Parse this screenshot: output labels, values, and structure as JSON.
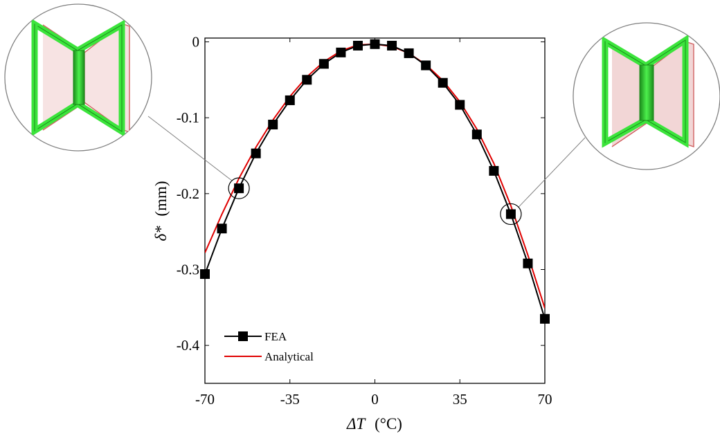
{
  "chart_data": {
    "type": "line",
    "xlabel_symbol": "ΔT",
    "xlabel_unit": "(°C)",
    "ylabel_symbol": "δ*",
    "ylabel_unit": "(mm)",
    "xlim": [
      -70,
      70
    ],
    "ylim": [
      -0.45,
      0.005
    ],
    "xticks": [
      -70,
      -35,
      0,
      35,
      70
    ],
    "xtick_labels": [
      "-70",
      "-35",
      "0",
      "35",
      "70"
    ],
    "yticks": [
      0,
      -0.1,
      -0.2,
      -0.3,
      -0.4
    ],
    "ytick_labels": [
      "0",
      "-0.1",
      "-0.2",
      "-0.3",
      "-0.4"
    ],
    "grid": false,
    "legend_position": "bottom-left",
    "series": [
      {
        "name": "FEA",
        "color": "#000000",
        "marker": "square",
        "x": [
          -70,
          -63,
          -56,
          -49,
          -42,
          -35,
          -28,
          -21,
          -14,
          -7,
          0,
          7,
          14,
          21,
          28,
          35,
          42,
          49,
          56,
          63,
          70
        ],
        "y": [
          -0.306,
          -0.246,
          -0.193,
          -0.147,
          -0.109,
          -0.077,
          -0.05,
          -0.029,
          -0.014,
          -0.005,
          -0.003,
          -0.005,
          -0.015,
          -0.031,
          -0.054,
          -0.083,
          -0.122,
          -0.17,
          -0.227,
          -0.292,
          -0.365
        ]
      },
      {
        "name": "Analytical",
        "color": "#e00000",
        "marker": "none",
        "x": [
          -70,
          -63,
          -56,
          -49,
          -42,
          -35,
          -28,
          -21,
          -14,
          -7,
          0,
          7,
          14,
          21,
          28,
          35,
          42,
          49,
          56,
          63,
          70
        ],
        "y": [
          -0.278,
          -0.227,
          -0.18,
          -0.139,
          -0.103,
          -0.072,
          -0.046,
          -0.026,
          -0.012,
          -0.004,
          -0.003,
          -0.006,
          -0.015,
          -0.03,
          -0.051,
          -0.079,
          -0.115,
          -0.16,
          -0.216,
          -0.281,
          -0.351
        ]
      }
    ],
    "highlighted_points": [
      {
        "series": "FEA",
        "x": -56,
        "y": -0.193
      },
      {
        "series": "FEA",
        "x": 56,
        "y": -0.227
      }
    ],
    "insets": [
      {
        "side": "left",
        "linked_to_x": -56,
        "depiction": "deformed-bowtie-cell"
      },
      {
        "side": "right",
        "linked_to_x": 56,
        "depiction": "deformed-bowtie-cell"
      }
    ]
  },
  "colors": {
    "axis": "#000000",
    "fea": "#000000",
    "analytical": "#e00000",
    "cell_green": "#3ce43c",
    "cell_green_dark": "#1a8a1a",
    "ghost_red": "#d06060",
    "ghost_fill": "#f2d6d6",
    "lens_border": "#808080"
  }
}
